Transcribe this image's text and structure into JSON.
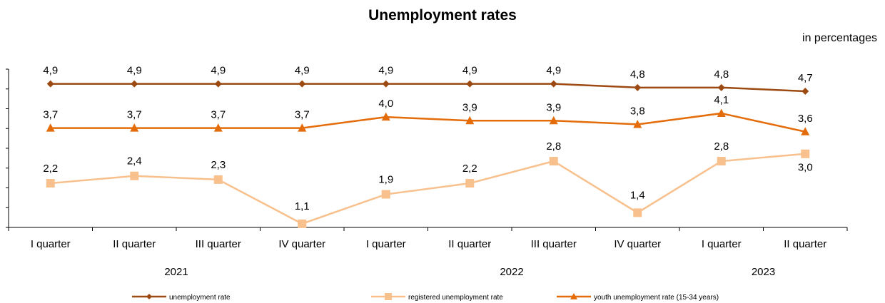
{
  "chart_data": {
    "type": "line",
    "title": "Unemployment rates",
    "subtitle": "in percentages",
    "categories": [
      "I quarter",
      "II quarter",
      "III quarter",
      "IV quarter",
      "I quarter",
      "II quarter",
      "III quarter",
      "IV quarter",
      "I quarter",
      "II quarter"
    ],
    "years": [
      {
        "label": "2021",
        "from": 0,
        "to": 3
      },
      {
        "label": "2022",
        "from": 4,
        "to": 7
      },
      {
        "label": "2023",
        "from": 8,
        "to": 9
      }
    ],
    "ylim": [
      1.0,
      5.3
    ],
    "grid": false,
    "legend_position": "bottom",
    "series": [
      {
        "name": "unemployment rate",
        "color": "#9C4A12",
        "marker": "diamond",
        "values": [
          4.9,
          4.9,
          4.9,
          4.9,
          4.9,
          4.9,
          4.9,
          4.8,
          4.8,
          4.7
        ],
        "labels": [
          "4,9",
          "4,9",
          "4,9",
          "4,9",
          "4,9",
          "4,9",
          "4,9",
          "4,8",
          "4,8",
          "4,7"
        ]
      },
      {
        "name": "registered unemployment  rate",
        "color": "#F8C08C",
        "marker": "square",
        "values": [
          2.2,
          2.4,
          2.3,
          1.1,
          1.9,
          2.2,
          2.8,
          1.4,
          2.8,
          3.0
        ],
        "labels": [
          "2,2",
          "2,4",
          "2,3",
          "1,1",
          "1,9",
          "2,2",
          "2,8",
          "1,4",
          "2,8",
          "3,0"
        ]
      },
      {
        "name": "youth unemployment  rate (15-34  years)",
        "color": "#E46C0A",
        "marker": "triangle",
        "values": [
          3.7,
          3.7,
          3.7,
          3.7,
          4.0,
          3.9,
          3.9,
          3.8,
          4.1,
          3.6
        ],
        "labels": [
          "3,7",
          "3,7",
          "3,7",
          "3,7",
          "4,0",
          "3,9",
          "3,9",
          "3,8",
          "4,1",
          "3,6"
        ]
      }
    ]
  }
}
